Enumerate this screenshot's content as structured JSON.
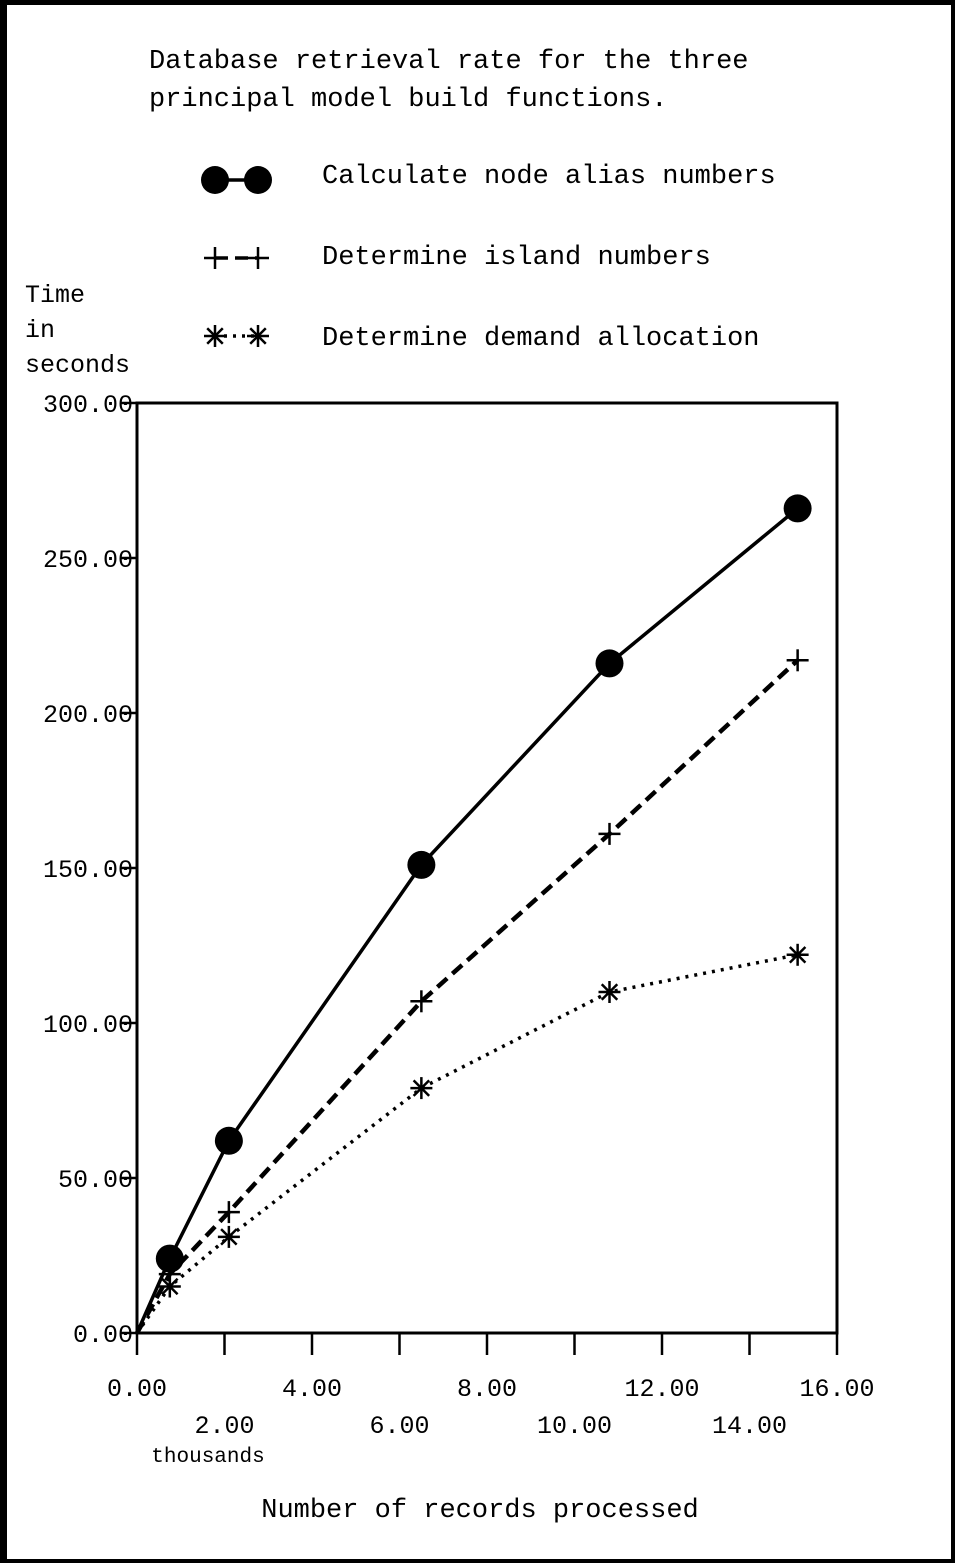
{
  "chart_data": {
    "type": "line",
    "title_lines": [
      "Database retrieval rate for the three",
      "principal model build functions."
    ],
    "ylabel_lines": [
      "Time",
      "in",
      "seconds"
    ],
    "xlabel": "Number of records processed",
    "x_unit_label": "thousands",
    "xlim": [
      0,
      16
    ],
    "ylim": [
      0,
      300
    ],
    "x_ticks": [
      0,
      2,
      4,
      6,
      8,
      10,
      12,
      14,
      16
    ],
    "x_tick_labels": [
      "0.00",
      "2.00",
      "4.00",
      "6.00",
      "8.00",
      "10.00",
      "12.00",
      "14.00",
      "16.00"
    ],
    "y_ticks": [
      0,
      50,
      100,
      150,
      200,
      250,
      300
    ],
    "y_tick_labels": [
      "0.00",
      "50.00",
      "100.00",
      "150.00",
      "200.00",
      "250.00",
      "300.00"
    ],
    "legend_position": "top",
    "series": [
      {
        "name": "Calculate node alias numbers",
        "marker": "filled-circle",
        "line_style": "solid",
        "x": [
          0,
          0.75,
          2.1,
          6.5,
          10.8,
          15.1
        ],
        "y": [
          0,
          24,
          62,
          151,
          216,
          266
        ]
      },
      {
        "name": "Determine island numbers",
        "marker": "plus",
        "line_style": "dashed",
        "x": [
          0,
          0.75,
          2.1,
          6.5,
          10.8,
          15.1
        ],
        "y": [
          0,
          19,
          39,
          107,
          161,
          217
        ]
      },
      {
        "name": "Determine demand allocation",
        "marker": "asterisk",
        "line_style": "dotted",
        "x": [
          0,
          0.75,
          2.1,
          6.5,
          10.8,
          15.1
        ],
        "y": [
          0,
          15,
          31,
          79,
          110,
          122
        ]
      }
    ]
  }
}
